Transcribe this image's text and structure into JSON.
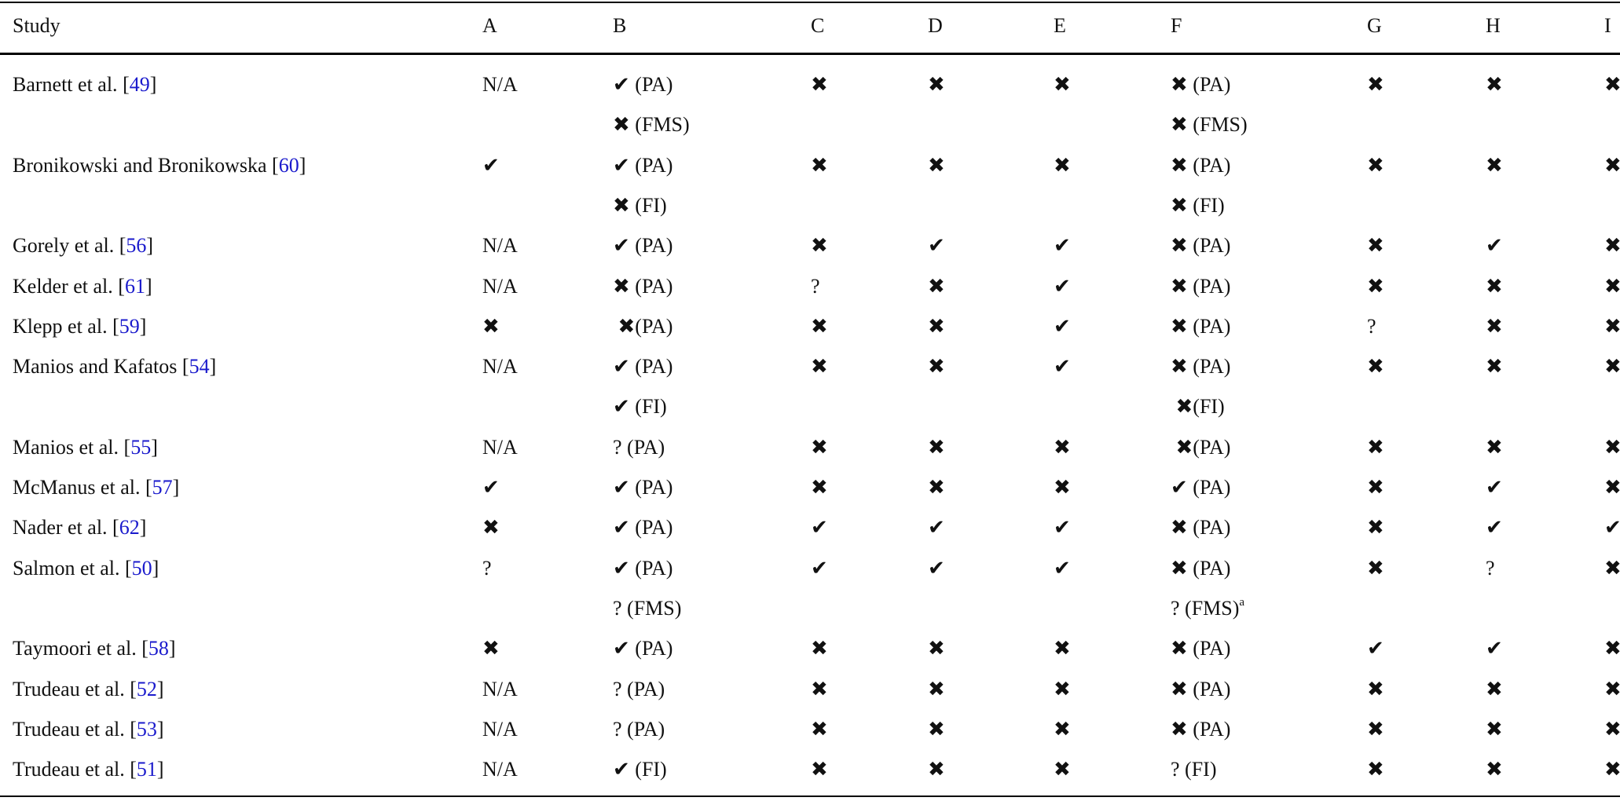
{
  "table": {
    "header": [
      "Study",
      "A",
      "B",
      "C",
      "D",
      "E",
      "F",
      "G",
      "H",
      "I"
    ],
    "ref_brackets": [
      "[",
      "]"
    ],
    "rows": [
      {
        "name": "Barnett et al. ",
        "ref": "49",
        "cells": [
          [
            "N/A"
          ],
          [
            "✔ (PA)",
            "✖ (FMS)"
          ],
          [
            "✖"
          ],
          [
            "✖"
          ],
          [
            "✖"
          ],
          [
            "✖ (PA)",
            "✖ (FMS)"
          ],
          [
            "✖"
          ],
          [
            "✖"
          ],
          [
            "✖"
          ]
        ]
      },
      {
        "name": "Bronikowski and Bronikowska ",
        "ref": "60",
        "cells": [
          [
            "✔"
          ],
          [
            "✔ (PA)",
            "✖ (FI)"
          ],
          [
            "✖"
          ],
          [
            "✖"
          ],
          [
            "✖"
          ],
          [
            "✖ (PA)",
            "✖ (FI)"
          ],
          [
            "✖"
          ],
          [
            "✖"
          ],
          [
            "✖"
          ]
        ]
      },
      {
        "name": "Gorely et al. ",
        "ref": "56",
        "cells": [
          [
            "N/A"
          ],
          [
            "✔ (PA)"
          ],
          [
            "✖"
          ],
          [
            "✔"
          ],
          [
            "✔"
          ],
          [
            "✖ (PA)"
          ],
          [
            "✖"
          ],
          [
            "✔"
          ],
          [
            "✖"
          ]
        ]
      },
      {
        "name": "Kelder et al. ",
        "ref": "61",
        "cells": [
          [
            "N/A"
          ],
          [
            "✖ (PA)"
          ],
          [
            "?"
          ],
          [
            "✖"
          ],
          [
            "✔"
          ],
          [
            "✖ (PA)"
          ],
          [
            "✖"
          ],
          [
            "✖"
          ],
          [
            "✖"
          ]
        ]
      },
      {
        "name": "Klepp et al. ",
        "ref": "59",
        "cells": [
          [
            "✖"
          ],
          [
            " ✖(PA)"
          ],
          [
            "✖"
          ],
          [
            "✖"
          ],
          [
            "✔"
          ],
          [
            "✖ (PA)"
          ],
          [
            "?"
          ],
          [
            "✖"
          ],
          [
            "✖"
          ]
        ]
      },
      {
        "name": "Manios and Kafatos ",
        "ref": "54",
        "cells": [
          [
            "N/A"
          ],
          [
            "✔ (PA)",
            "✔ (FI)"
          ],
          [
            "✖"
          ],
          [
            "✖"
          ],
          [
            "✔"
          ],
          [
            "✖ (PA)",
            " ✖(FI)"
          ],
          [
            "✖"
          ],
          [
            "✖"
          ],
          [
            "✖"
          ]
        ]
      },
      {
        "name": "Manios et al. ",
        "ref": "55",
        "cells": [
          [
            "N/A"
          ],
          [
            "? (PA)"
          ],
          [
            "✖"
          ],
          [
            "✖"
          ],
          [
            "✖"
          ],
          [
            " ✖(PA)"
          ],
          [
            "✖"
          ],
          [
            "✖"
          ],
          [
            "✖"
          ]
        ]
      },
      {
        "name": "McManus et al. ",
        "ref": "57",
        "cells": [
          [
            "✔"
          ],
          [
            "✔ (PA)"
          ],
          [
            "✖"
          ],
          [
            "✖"
          ],
          [
            "✖"
          ],
          [
            "✔ (PA)"
          ],
          [
            "✖"
          ],
          [
            "✔"
          ],
          [
            "✖"
          ]
        ]
      },
      {
        "name": "Nader et al. ",
        "ref": "62",
        "cells": [
          [
            "✖"
          ],
          [
            "✔ (PA)"
          ],
          [
            "✔"
          ],
          [
            "✔"
          ],
          [
            "✔"
          ],
          [
            "✖ (PA)"
          ],
          [
            "✖"
          ],
          [
            "✔"
          ],
          [
            "✔"
          ]
        ]
      },
      {
        "name": "Salmon et al. ",
        "ref": "50",
        "cells": [
          [
            "?"
          ],
          [
            "✔ (PA)",
            "? (FMS)"
          ],
          [
            "✔"
          ],
          [
            "✔"
          ],
          [
            "✔"
          ],
          [
            "✖ (PA)",
            {
              "text": "? (FMS)",
              "sup": "a"
            }
          ],
          [
            "✖"
          ],
          [
            "?"
          ],
          [
            "✖"
          ]
        ]
      },
      {
        "name": "Taymoori et al. ",
        "ref": "58",
        "cells": [
          [
            "✖"
          ],
          [
            "✔ (PA)"
          ],
          [
            "✖"
          ],
          [
            "✖"
          ],
          [
            "✖"
          ],
          [
            "✖ (PA)"
          ],
          [
            "✔"
          ],
          [
            "✔"
          ],
          [
            "✖"
          ]
        ]
      },
      {
        "name": "Trudeau et al. ",
        "ref": "52",
        "cells": [
          [
            "N/A"
          ],
          [
            "? (PA)"
          ],
          [
            "✖"
          ],
          [
            "✖"
          ],
          [
            "✖"
          ],
          [
            "✖ (PA)"
          ],
          [
            "✖"
          ],
          [
            "✖"
          ],
          [
            "✖"
          ]
        ]
      },
      {
        "name": "Trudeau et al. ",
        "ref": "53",
        "cells": [
          [
            "N/A"
          ],
          [
            "? (PA)"
          ],
          [
            "✖"
          ],
          [
            "✖"
          ],
          [
            "✖"
          ],
          [
            "✖ (PA)"
          ],
          [
            "✖"
          ],
          [
            "✖"
          ],
          [
            "✖"
          ]
        ]
      },
      {
        "name": "Trudeau et al. ",
        "ref": "51",
        "cells": [
          [
            "N/A"
          ],
          [
            "✔ (FI)"
          ],
          [
            "✖"
          ],
          [
            "✖"
          ],
          [
            "✖"
          ],
          [
            "? (FI)"
          ],
          [
            "✖"
          ],
          [
            "✖"
          ],
          [
            "✖"
          ]
        ]
      }
    ]
  }
}
